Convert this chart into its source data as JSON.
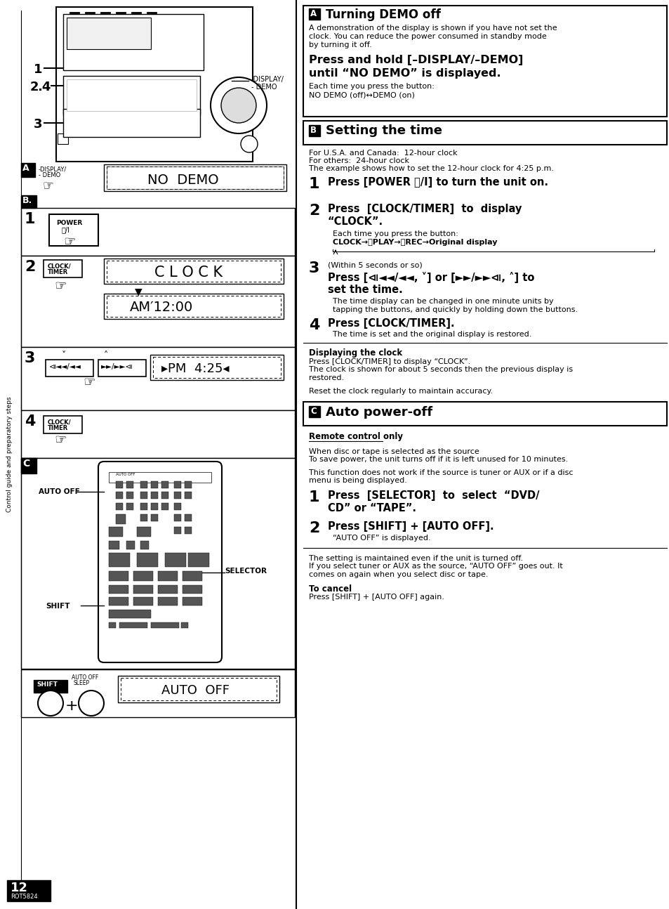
{
  "page_bg": "#ffffff",
  "sections": {
    "A_title": "Turning DEMO off",
    "A_desc1": "A demonstration of the display is shown if you have not set the",
    "A_desc2": "clock. You can reduce the power consumed in standby mode",
    "A_desc3": "by turning it off.",
    "A_bold1": "Press and hold [–DISPLAY/–DEMO]",
    "A_bold2": "until “NO DEMO” is displayed.",
    "A_small1": "Each time you press the button:",
    "A_small2": "NO DEMO (off)↔DEMO (on)",
    "B_title": "Setting the time",
    "B_info1": "For U.S.A. and Canada:  12-hour clock",
    "B_info2": "For others:  24-hour clock",
    "B_info3": "The example shows how to set the 12-hour clock for 4:25 p.m.",
    "B_step1_bold": "Press [POWER ⏻/I] to turn the unit on.",
    "B_step2_bold1": "Press  [CLOCK/TIMER]  to  display",
    "B_step2_bold2": "“CLOCK”.",
    "B_step2_small1": "Each time you press the button:",
    "B_step2_small2": "CLOCK→ⓅPLAY→ⓅREC→Original display",
    "B_step3_small": "(Within 5 seconds or so)",
    "B_step3_bold1": "Press [⧏◄◄/◄◄, ˅] or [►►/►►⧏, ˄] to",
    "B_step3_bold2": "set the time.",
    "B_step3_desc1": "The time display can be changed in one minute units by",
    "B_step3_desc2": "tapping the buttons, and quickly by holding down the buttons.",
    "B_step4_bold": "Press [CLOCK/TIMER].",
    "B_step4_desc": "The time is set and the original display is restored.",
    "display_clock_title": "Displaying the clock",
    "display_clock1": "Press [CLOCK/TIMER] to display “CLOCK”.",
    "display_clock2": "The clock is shown for about 5 seconds then the previous display is",
    "display_clock3": "restored.",
    "reset_note": "Reset the clock regularly to maintain accuracy.",
    "C_title": "Auto power-off",
    "C_subtitle": "Remote control only",
    "C_desc1": "When disc or tape is selected as the source",
    "C_desc2": "To save power, the unit turns off if it is left unused for 10 minutes.",
    "C_desc4": "This function does not work if the source is tuner or AUX or if a disc",
    "C_desc5": "menu is being displayed.",
    "C_step1_bold1": "Press  [SELECTOR]  to  select  “DVD/",
    "C_step1_bold2": "CD” or “TAPE”.",
    "C_step2_bold": "Press [SHIFT] + [AUTO OFF].",
    "C_step2_desc": "“AUTO OFF” is displayed.",
    "C_footer1": "The setting is maintained even if the unit is turned off.",
    "C_footer2": "If you select tuner or AUX as the source, “AUTO OFF” goes out. It",
    "C_footer3": "comes on again when you select disc or tape.",
    "C_cancel_title": "To cancel",
    "C_cancel_desc": "Press [SHIFT] + [AUTO OFF] again.",
    "page_num": "12",
    "page_code": "ROT5824",
    "sidebar_text": "Control guide and preparatory steps"
  }
}
